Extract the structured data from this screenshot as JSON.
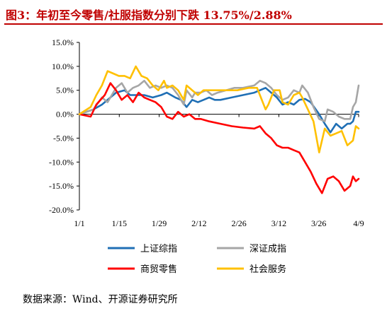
{
  "title": "图3：年初至今零售/社服指数分别下跌 13.75%/2.88%",
  "source": "数据来源：Wind、开源证券研究所",
  "chart_data": {
    "type": "line",
    "title": "图3：年初至今零售/社服指数分别下跌 13.75%/2.88%",
    "xlabel": "",
    "ylabel": "",
    "x_ticks": [
      "1/1",
      "1/15",
      "1/29",
      "2/12",
      "2/26",
      "3/12",
      "3/26",
      "4/9"
    ],
    "x_range": [
      0,
      99
    ],
    "ylim": [
      -20,
      15
    ],
    "y_ticks": [
      15,
      10,
      5,
      0,
      -5,
      -10,
      -15,
      -20
    ],
    "y_tick_labels": [
      "15.0%",
      "10.0%",
      "5.0%",
      "0.0%",
      "-5.0%",
      "-10.0%",
      "-15.0%",
      "-20.0%"
    ],
    "grid": false,
    "legend_position": "bottom",
    "series": [
      {
        "name": "上证综指",
        "color": "#1f6fb5",
        "points": [
          [
            0,
            0
          ],
          [
            5,
            1
          ],
          [
            8,
            2
          ],
          [
            10,
            3
          ],
          [
            13,
            4.5
          ],
          [
            16,
            5
          ],
          [
            18,
            4
          ],
          [
            20,
            4
          ],
          [
            23,
            4
          ],
          [
            26,
            3.5
          ],
          [
            29,
            4
          ],
          [
            31,
            4.5
          ],
          [
            34,
            3.5
          ],
          [
            36,
            3
          ],
          [
            38,
            1.5
          ],
          [
            40,
            3
          ],
          [
            42,
            2.5
          ],
          [
            44,
            3
          ],
          [
            46,
            3.5
          ],
          [
            48,
            3
          ],
          [
            50,
            3
          ],
          [
            54,
            3.5
          ],
          [
            58,
            4
          ],
          [
            62,
            4.5
          ],
          [
            64,
            5
          ],
          [
            66,
            5.5
          ],
          [
            68,
            4.5
          ],
          [
            70,
            3.5
          ],
          [
            72,
            2
          ],
          [
            74,
            2.5
          ],
          [
            76,
            2
          ],
          [
            78,
            3
          ],
          [
            80,
            3.2
          ],
          [
            82,
            2.5
          ],
          [
            85,
            0
          ],
          [
            87,
            -2
          ],
          [
            89,
            -3.8
          ],
          [
            91,
            -2
          ],
          [
            93,
            -3
          ],
          [
            95,
            -2
          ],
          [
            96,
            -2
          ],
          [
            97,
            -1.5
          ],
          [
            98,
            0.5
          ],
          [
            99,
            0.5
          ]
        ]
      },
      {
        "name": "深证成指",
        "color": "#a6a6a6",
        "points": [
          [
            0,
            0
          ],
          [
            5,
            1
          ],
          [
            8,
            3.5
          ],
          [
            10,
            2.5
          ],
          [
            13,
            5.5
          ],
          [
            15,
            6.5
          ],
          [
            17,
            4.5
          ],
          [
            19,
            5.5
          ],
          [
            21,
            6
          ],
          [
            23,
            7
          ],
          [
            25,
            5.5
          ],
          [
            27,
            6
          ],
          [
            29,
            5.5
          ],
          [
            31,
            6
          ],
          [
            33,
            5.5
          ],
          [
            35,
            4
          ],
          [
            37,
            2
          ],
          [
            38,
            5
          ],
          [
            40,
            3.5
          ],
          [
            41,
            4.5
          ],
          [
            43,
            4.5
          ],
          [
            45,
            5
          ],
          [
            47,
            4
          ],
          [
            49,
            4.5
          ],
          [
            52,
            5
          ],
          [
            55,
            5.5
          ],
          [
            58,
            5.5
          ],
          [
            62,
            6
          ],
          [
            64,
            7
          ],
          [
            66,
            6.5
          ],
          [
            68,
            5.5
          ],
          [
            70,
            4
          ],
          [
            72,
            3
          ],
          [
            74,
            3.5
          ],
          [
            76,
            5
          ],
          [
            78,
            4.5
          ],
          [
            79,
            6
          ],
          [
            81,
            4.5
          ],
          [
            83,
            1.5
          ],
          [
            85,
            -1
          ],
          [
            87,
            -1.5
          ],
          [
            88,
            1
          ],
          [
            90,
            0.5
          ],
          [
            92,
            -0.5
          ],
          [
            94,
            -1
          ],
          [
            96,
            -1
          ],
          [
            97,
            1.5
          ],
          [
            98,
            2.5
          ],
          [
            99,
            6
          ]
        ]
      },
      {
        "name": "商贸零售",
        "color": "#ff0000",
        "points": [
          [
            0,
            0
          ],
          [
            4,
            -0.5
          ],
          [
            6,
            2
          ],
          [
            9,
            4
          ],
          [
            11,
            6.5
          ],
          [
            13,
            5
          ],
          [
            15,
            3
          ],
          [
            17,
            4
          ],
          [
            19,
            2.5
          ],
          [
            21,
            4.5
          ],
          [
            23,
            3.5
          ],
          [
            25,
            3
          ],
          [
            27,
            2.5
          ],
          [
            29,
            1.5
          ],
          [
            31,
            -0.5
          ],
          [
            33,
            -1
          ],
          [
            35,
            0.5
          ],
          [
            37,
            -0.5
          ],
          [
            39,
            0
          ],
          [
            41,
            -1
          ],
          [
            43,
            -1
          ],
          [
            46,
            -1.5
          ],
          [
            50,
            -2
          ],
          [
            54,
            -2.5
          ],
          [
            58,
            -2.8
          ],
          [
            62,
            -3
          ],
          [
            64,
            -2.5
          ],
          [
            66,
            -4
          ],
          [
            68,
            -5
          ],
          [
            70,
            -6.5
          ],
          [
            72,
            -7
          ],
          [
            74,
            -7
          ],
          [
            76,
            -7.5
          ],
          [
            78,
            -8
          ],
          [
            80,
            -10
          ],
          [
            82,
            -12
          ],
          [
            84,
            -14.5
          ],
          [
            86,
            -16.5
          ],
          [
            88,
            -13.5
          ],
          [
            90,
            -13
          ],
          [
            92,
            -14
          ],
          [
            94,
            -16
          ],
          [
            96,
            -15
          ],
          [
            97,
            -13
          ],
          [
            98,
            -14
          ],
          [
            99,
            -13.5
          ]
        ]
      },
      {
        "name": "社会服务",
        "color": "#ffc000",
        "points": [
          [
            0,
            0
          ],
          [
            4,
            1.5
          ],
          [
            6,
            4
          ],
          [
            8,
            6
          ],
          [
            10,
            9
          ],
          [
            12,
            8.5
          ],
          [
            14,
            8
          ],
          [
            16,
            8
          ],
          [
            18,
            7.5
          ],
          [
            20,
            10
          ],
          [
            22,
            8
          ],
          [
            24,
            7.5
          ],
          [
            26,
            6
          ],
          [
            28,
            5
          ],
          [
            30,
            7
          ],
          [
            31,
            5.5
          ],
          [
            33,
            6
          ],
          [
            35,
            5
          ],
          [
            37,
            3
          ],
          [
            38,
            6
          ],
          [
            40,
            5
          ],
          [
            42,
            4
          ],
          [
            44,
            5
          ],
          [
            46,
            5
          ],
          [
            48,
            5
          ],
          [
            52,
            5
          ],
          [
            56,
            5
          ],
          [
            60,
            5.5
          ],
          [
            63,
            5.5
          ],
          [
            64,
            4
          ],
          [
            66,
            1
          ],
          [
            67,
            2
          ],
          [
            69,
            5
          ],
          [
            71,
            5
          ],
          [
            72,
            2.5
          ],
          [
            74,
            2
          ],
          [
            76,
            4
          ],
          [
            78,
            4.5
          ],
          [
            79,
            3.5
          ],
          [
            81,
            1
          ],
          [
            83,
            -1.5
          ],
          [
            85,
            -8
          ],
          [
            87,
            -3
          ],
          [
            89,
            -4.5
          ],
          [
            91,
            -4
          ],
          [
            93,
            -3.5
          ],
          [
            95,
            -6.5
          ],
          [
            97,
            -5.5
          ],
          [
            98,
            -2.5
          ],
          [
            99,
            -3
          ]
        ]
      }
    ]
  }
}
